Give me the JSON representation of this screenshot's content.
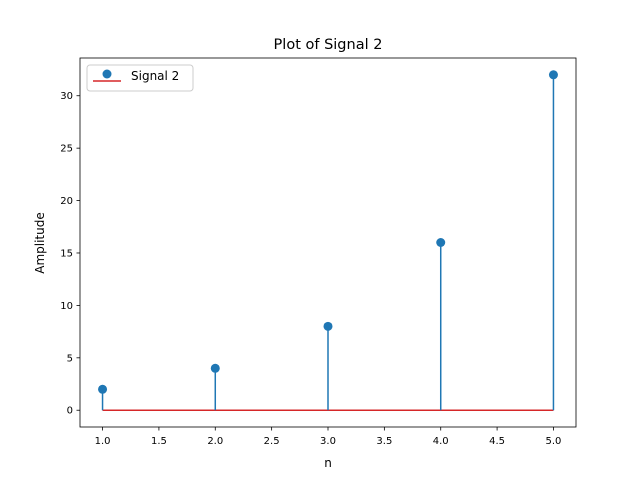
{
  "chart_data": {
    "type": "stem",
    "title": "Plot of Signal 2",
    "xlabel": "n",
    "ylabel": "Amplitude",
    "xlim": [
      0.8,
      5.2
    ],
    "ylim": [
      -1.6,
      33.6
    ],
    "xticks": [
      1.0,
      1.5,
      2.0,
      2.5,
      3.0,
      3.5,
      4.0,
      4.5,
      5.0
    ],
    "xtick_labels": [
      "1.0",
      "1.5",
      "2.0",
      "2.5",
      "3.0",
      "3.5",
      "4.0",
      "4.5",
      "5.0"
    ],
    "yticks": [
      0,
      5,
      10,
      15,
      20,
      25,
      30
    ],
    "ytick_labels": [
      "0",
      "5",
      "10",
      "15",
      "20",
      "25",
      "30"
    ],
    "grid": false,
    "legend_position": "upper-left",
    "series": [
      {
        "name": "Signal 2",
        "x": [
          1,
          2,
          3,
          4,
          5
        ],
        "y": [
          2,
          4,
          8,
          16,
          32
        ],
        "marker_color": "#1f77b4",
        "stem_color": "#1f77b4",
        "baseline_color": "#d62728",
        "baseline_value": 0
      }
    ]
  }
}
